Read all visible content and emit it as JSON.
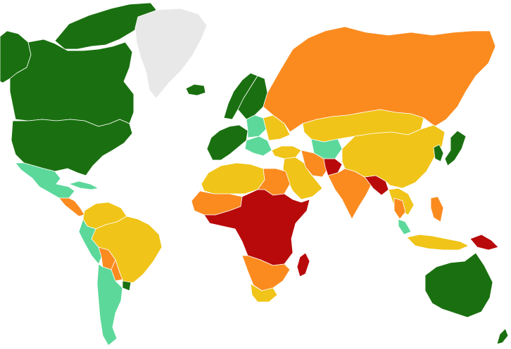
{
  "map": {
    "background": "#ffffff",
    "categories": [
      {
        "id": "dark-green",
        "color": "#1a7010"
      },
      {
        "id": "light-green",
        "color": "#5cd89a"
      },
      {
        "id": "yellow",
        "color": "#f0c418"
      },
      {
        "id": "orange",
        "color": "#fb8b1f"
      },
      {
        "id": "red",
        "color": "#b80a0a"
      },
      {
        "id": "no-data",
        "color": "#e8e8e8"
      }
    ],
    "regions": [
      {
        "name": "alaska",
        "category": "dark-green"
      },
      {
        "name": "canada",
        "category": "dark-green"
      },
      {
        "name": "canadian-arctic-islands",
        "category": "dark-green"
      },
      {
        "name": "greenland",
        "category": "no-data"
      },
      {
        "name": "iceland",
        "category": "dark-green"
      },
      {
        "name": "united-states",
        "category": "dark-green"
      },
      {
        "name": "mexico",
        "category": "light-green"
      },
      {
        "name": "cuba",
        "category": "light-green"
      },
      {
        "name": "central-america",
        "category": "orange"
      },
      {
        "name": "colombia-venezuela",
        "category": "yellow"
      },
      {
        "name": "brazil",
        "category": "yellow"
      },
      {
        "name": "peru-ecuador",
        "category": "light-green"
      },
      {
        "name": "bolivia",
        "category": "orange"
      },
      {
        "name": "paraguay",
        "category": "orange"
      },
      {
        "name": "uruguay",
        "category": "dark-green"
      },
      {
        "name": "argentina-chile",
        "category": "light-green"
      },
      {
        "name": "norway",
        "category": "dark-green"
      },
      {
        "name": "sweden-finland",
        "category": "dark-green"
      },
      {
        "name": "western-europe",
        "category": "dark-green"
      },
      {
        "name": "eastern-europe",
        "category": "light-green"
      },
      {
        "name": "balkans",
        "category": "light-green"
      },
      {
        "name": "ukraine-belarus",
        "category": "yellow"
      },
      {
        "name": "russia",
        "category": "orange"
      },
      {
        "name": "kazakhstan-mongolia",
        "category": "yellow"
      },
      {
        "name": "central-asia",
        "category": "light-green"
      },
      {
        "name": "turkey",
        "category": "yellow"
      },
      {
        "name": "middle-east",
        "category": "yellow"
      },
      {
        "name": "iran",
        "category": "orange"
      },
      {
        "name": "afghanistan",
        "category": "red"
      },
      {
        "name": "pakistan-india",
        "category": "orange"
      },
      {
        "name": "bangladesh-myanmar",
        "category": "red"
      },
      {
        "name": "china",
        "category": "yellow"
      },
      {
        "name": "korea",
        "category": "dark-green"
      },
      {
        "name": "japan",
        "category": "dark-green"
      },
      {
        "name": "southeast-asia",
        "category": "yellow"
      },
      {
        "name": "thailand",
        "category": "orange"
      },
      {
        "name": "malaysia",
        "category": "light-green"
      },
      {
        "name": "philippines",
        "category": "orange"
      },
      {
        "name": "indonesia",
        "category": "yellow"
      },
      {
        "name": "papua-new-guinea",
        "category": "red"
      },
      {
        "name": "north-africa",
        "category": "yellow"
      },
      {
        "name": "egypt-libya",
        "category": "orange"
      },
      {
        "name": "west-africa-sahel",
        "category": "orange"
      },
      {
        "name": "central-east-africa",
        "category": "red"
      },
      {
        "name": "southern-africa",
        "category": "orange"
      },
      {
        "name": "south-africa",
        "category": "yellow"
      },
      {
        "name": "madagascar",
        "category": "red"
      },
      {
        "name": "australia",
        "category": "dark-green"
      },
      {
        "name": "new-zealand",
        "category": "dark-green"
      }
    ]
  }
}
